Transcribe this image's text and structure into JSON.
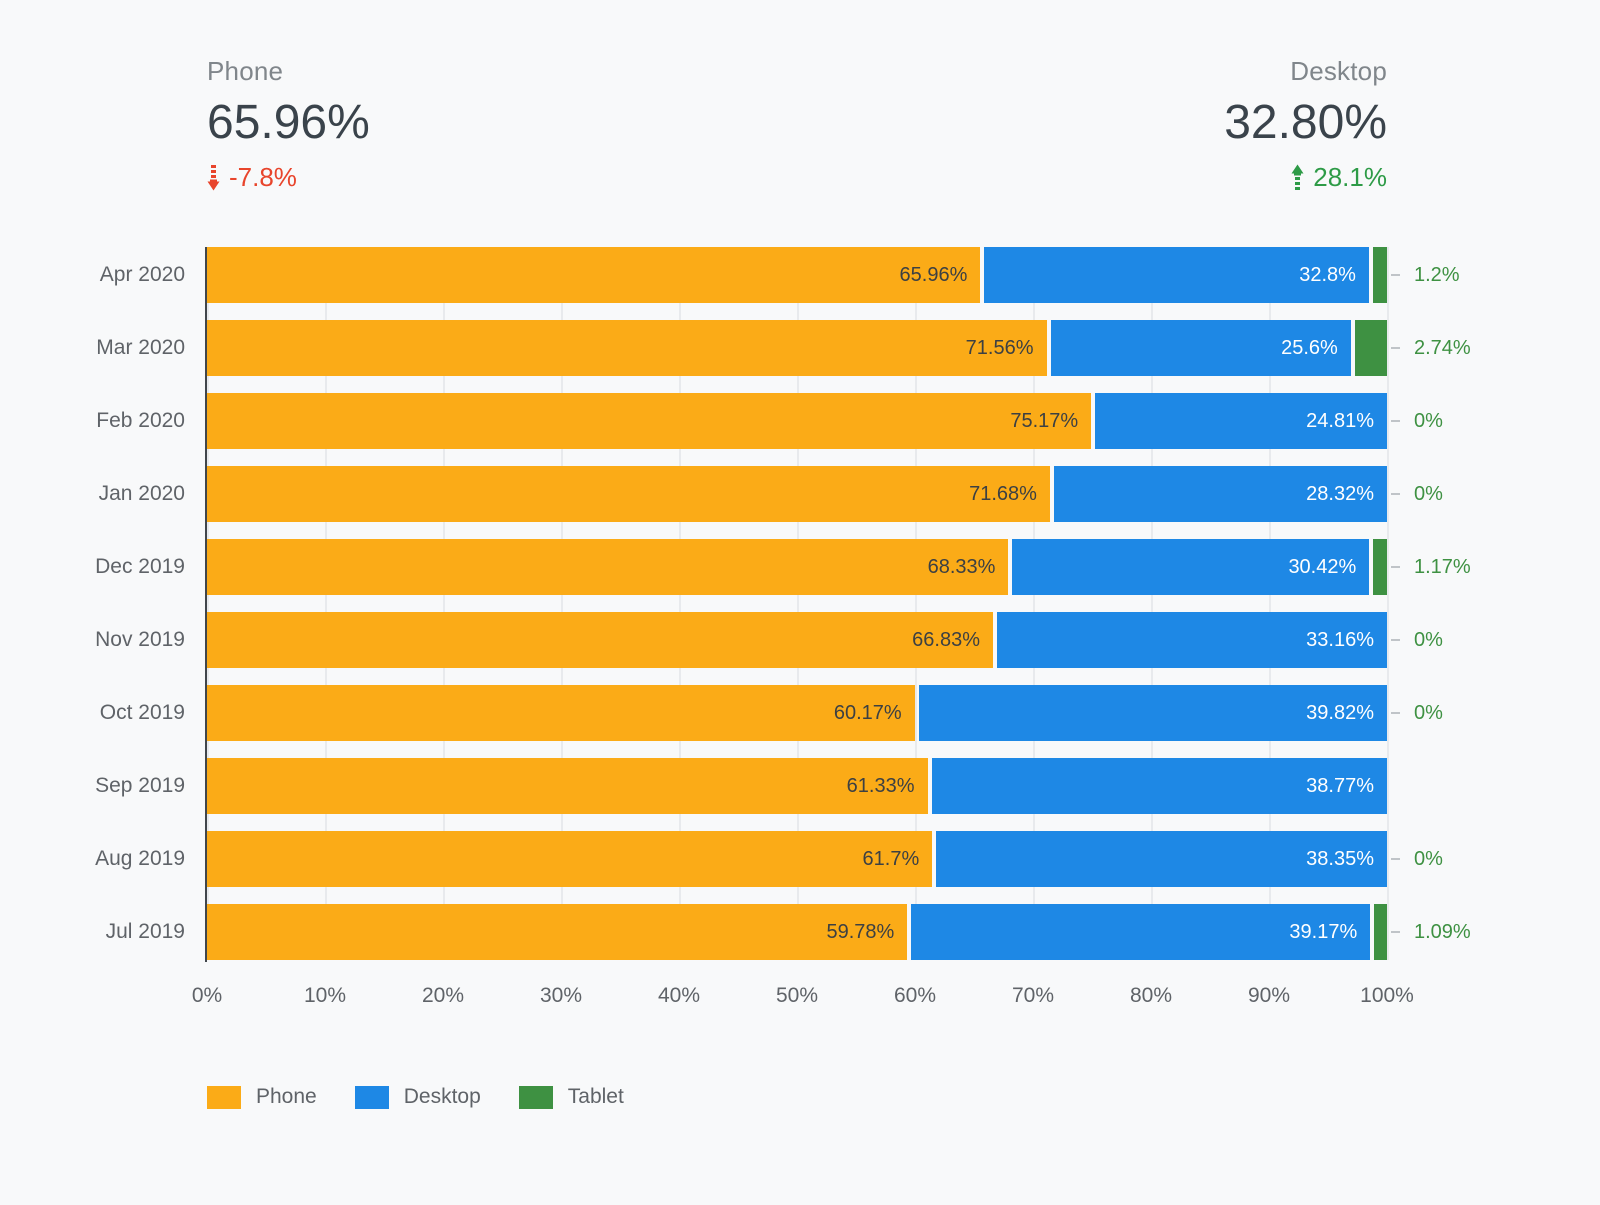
{
  "scorecards": {
    "phone": {
      "title": "Phone",
      "value": "65.96%",
      "delta": "-7.8%",
      "direction": "down",
      "delta_color": "#E8452C"
    },
    "desktop": {
      "title": "Desktop",
      "value": "32.80%",
      "delta": "28.1%",
      "direction": "up",
      "delta_color": "#2E9B47"
    }
  },
  "chart_data": {
    "type": "bar",
    "orientation": "horizontal",
    "stacked": true,
    "title": "",
    "xlabel": "",
    "ylabel": "",
    "xlim": [
      0,
      100
    ],
    "grid": true,
    "legend_position": "bottom",
    "categories": [
      "Apr 2020",
      "Mar 2020",
      "Feb 2020",
      "Jan 2020",
      "Dec 2019",
      "Nov 2019",
      "Oct 2019",
      "Sep 2019",
      "Aug 2019",
      "Jul 2019"
    ],
    "series": [
      {
        "name": "Phone",
        "color": "#FBAB17",
        "values": [
          65.96,
          71.56,
          75.17,
          71.68,
          68.33,
          66.83,
          60.17,
          61.33,
          61.7,
          59.78
        ],
        "labels": [
          "65.96%",
          "71.56%",
          "75.17%",
          "71.68%",
          "68.33%",
          "66.83%",
          "60.17%",
          "61.33%",
          "61.7%",
          "59.78%"
        ]
      },
      {
        "name": "Desktop",
        "color": "#1E88E5",
        "values": [
          32.8,
          25.6,
          24.81,
          28.32,
          30.42,
          33.16,
          39.82,
          38.77,
          38.35,
          39.17
        ],
        "labels": [
          "32.8%",
          "25.6%",
          "24.81%",
          "28.32%",
          "30.42%",
          "33.16%",
          "39.82%",
          "38.77%",
          "38.35%",
          "39.17%"
        ]
      },
      {
        "name": "Tablet",
        "color": "#3E9142",
        "values": [
          1.2,
          2.74,
          0,
          0,
          1.17,
          0,
          0,
          0,
          0,
          1.09
        ],
        "labels": [
          "1.2%",
          "2.74%",
          "0%",
          "0%",
          "1.17%",
          "0%",
          "0%",
          "",
          "0%",
          "1.09%"
        ]
      }
    ],
    "x_ticks": [
      "0%",
      "10%",
      "20%",
      "30%",
      "40%",
      "50%",
      "60%",
      "70%",
      "80%",
      "90%",
      "100%"
    ],
    "legend": [
      "Phone",
      "Desktop",
      "Tablet"
    ]
  }
}
